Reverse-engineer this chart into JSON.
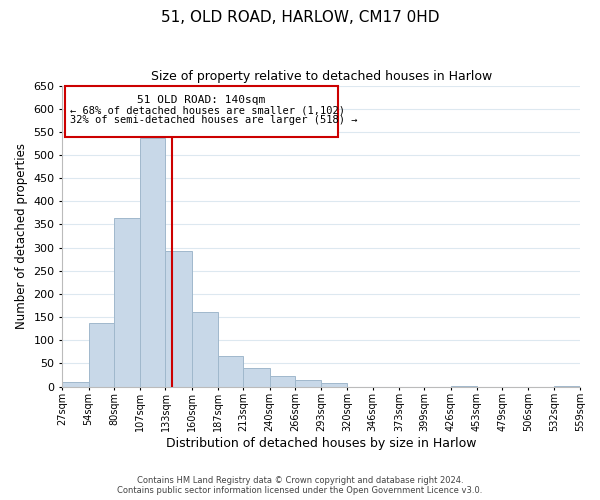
{
  "title": "51, OLD ROAD, HARLOW, CM17 0HD",
  "subtitle": "Size of property relative to detached houses in Harlow",
  "xlabel": "Distribution of detached houses by size in Harlow",
  "ylabel": "Number of detached properties",
  "bar_edges": [
    27,
    54,
    80,
    107,
    133,
    160,
    187,
    213,
    240,
    266,
    293,
    320,
    346,
    373,
    399,
    426,
    453,
    479,
    506,
    532,
    559
  ],
  "bar_heights": [
    10,
    137,
    363,
    537,
    293,
    160,
    65,
    40,
    22,
    15,
    8,
    0,
    0,
    0,
    0,
    1,
    0,
    0,
    0,
    2
  ],
  "bar_color": "#c8d8e8",
  "bar_edgecolor": "#a0b8cc",
  "vline_x": 140,
  "vline_color": "#cc0000",
  "ylim": [
    0,
    650
  ],
  "tick_labels": [
    "27sqm",
    "54sqm",
    "80sqm",
    "107sqm",
    "133sqm",
    "160sqm",
    "187sqm",
    "213sqm",
    "240sqm",
    "266sqm",
    "293sqm",
    "320sqm",
    "346sqm",
    "373sqm",
    "399sqm",
    "426sqm",
    "453sqm",
    "479sqm",
    "506sqm",
    "532sqm",
    "559sqm"
  ],
  "annotation_title": "51 OLD ROAD: 140sqm",
  "annotation_line1": "← 68% of detached houses are smaller (1,102)",
  "annotation_line2": "32% of semi-detached houses are larger (518) →",
  "annotation_box_color": "#ffffff",
  "annotation_box_edgecolor": "#cc0000",
  "footer_line1": "Contains HM Land Registry data © Crown copyright and database right 2024.",
  "footer_line2": "Contains public sector information licensed under the Open Government Licence v3.0.",
  "background_color": "#ffffff",
  "grid_color": "#dde8f0"
}
